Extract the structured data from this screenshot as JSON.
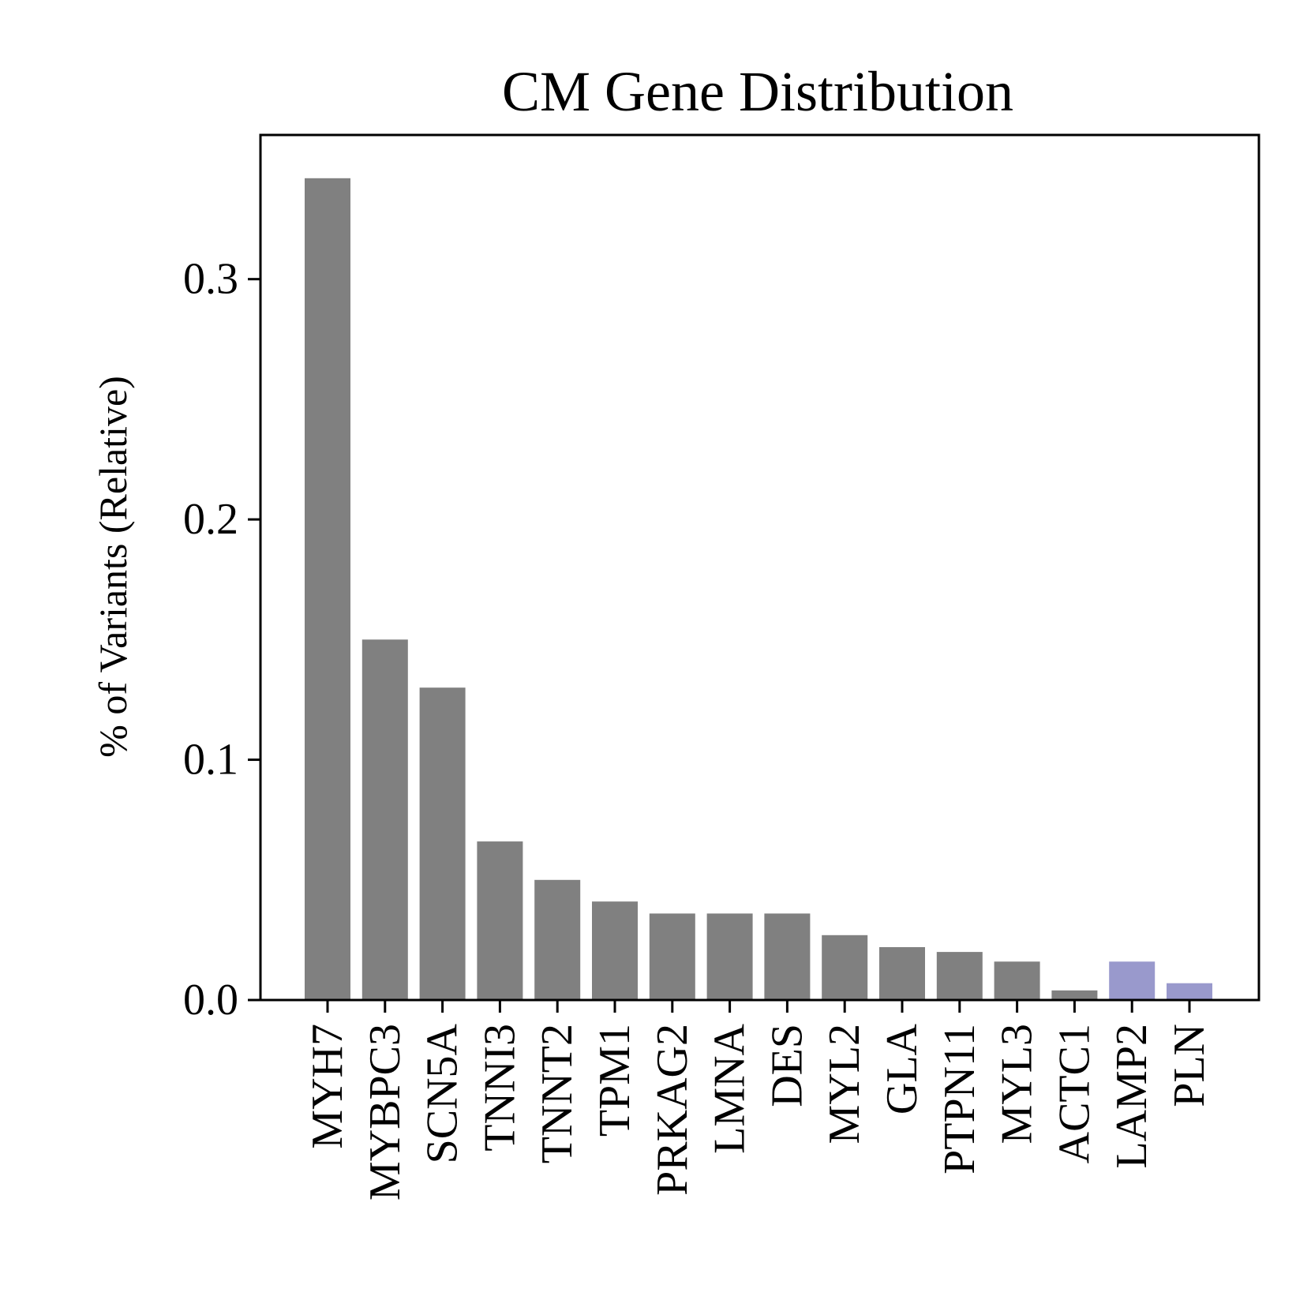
{
  "chart_data": {
    "type": "bar",
    "title": "CM Gene Distribution",
    "xlabel": "",
    "ylabel": "% of Variants (Relative)",
    "ylim": [
      0.0,
      0.36
    ],
    "yticks": [
      "0.0",
      "0.1",
      "0.2",
      "0.3"
    ],
    "grid": false,
    "categories": [
      "MYH7",
      "MYBPC3",
      "SCN5A",
      "TNNI3",
      "TNNT2",
      "TPM1",
      "PRKAG2",
      "LMNA",
      "DES",
      "MYL2",
      "GLA",
      "PTPN11",
      "MYL3",
      "ACTC1",
      "LAMP2",
      "PLN"
    ],
    "values": [
      0.342,
      0.15,
      0.13,
      0.066,
      0.05,
      0.041,
      0.036,
      0.036,
      0.036,
      0.027,
      0.022,
      0.02,
      0.016,
      0.004,
      0.016,
      0.007
    ],
    "colors": [
      "#808080",
      "#808080",
      "#808080",
      "#808080",
      "#808080",
      "#808080",
      "#808080",
      "#808080",
      "#808080",
      "#808080",
      "#808080",
      "#808080",
      "#808080",
      "#808080",
      "#9999cc",
      "#9999cc"
    ]
  }
}
